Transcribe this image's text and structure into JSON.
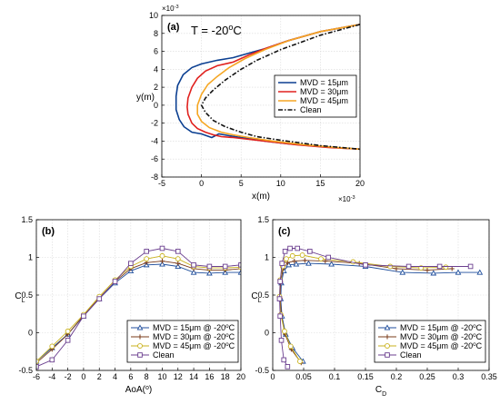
{
  "chart_data": [
    {
      "panel": "(a)",
      "type": "line",
      "annotation": "T = -20",
      "annotation_unit": "C",
      "annotation_sup": "o",
      "xlabel": "x(m)",
      "ylabel": "y(m)",
      "x_exponent_label": "×10",
      "x_exponent": "-3",
      "y_exponent_label": "×10",
      "y_exponent": "-3",
      "xlim": [
        -5,
        20
      ],
      "ylim": [
        -8,
        10
      ],
      "xticks": [
        "-5",
        "0",
        "5",
        "10",
        "15",
        "20"
      ],
      "yticks": [
        "-8",
        "-6",
        "-4",
        "-2",
        "0",
        "2",
        "4",
        "6",
        "8",
        "10"
      ],
      "grid": true,
      "legend_position": "right",
      "legend": [
        "MVD = 15μm",
        "MVD = 30μm",
        "MVD = 45μm",
        "Clean"
      ],
      "series": [
        {
          "name": "MVD = 15μm",
          "color": "#0b3f91",
          "x": [
            20,
            15,
            11,
            8,
            6,
            4,
            2,
            0,
            -1.2,
            -2.3,
            -3.0,
            -3.2,
            -3.2,
            -2.8,
            -2.2,
            -1.2,
            0,
            1.3,
            2.2,
            3.5,
            5,
            8,
            11,
            15,
            20
          ],
          "y": [
            9.0,
            8.2,
            7.2,
            6.3,
            5.8,
            5.3,
            5.0,
            4.6,
            4.2,
            3.4,
            2.2,
            1.0,
            -0.5,
            -1.6,
            -2.4,
            -3.0,
            -3.2,
            -3.6,
            -3.2,
            -3.4,
            -3.6,
            -4.0,
            -4.3,
            -4.6,
            -4.9
          ]
        },
        {
          "name": "MVD = 30μm",
          "color": "#e0211e",
          "x": [
            20,
            15,
            11,
            8,
            6,
            4,
            2,
            0.5,
            -0.5,
            -1.2,
            -1.7,
            -1.8,
            -1.7,
            -1.2,
            -0.5,
            0.5,
            1.5,
            2.5,
            4,
            6,
            9,
            12,
            16,
            20
          ],
          "y": [
            9.0,
            8.2,
            7.2,
            6.3,
            5.6,
            4.8,
            4.4,
            3.8,
            3.0,
            2.0,
            0.8,
            -0.2,
            -1.0,
            -2.0,
            -2.6,
            -3.0,
            -3.3,
            -3.5,
            -3.6,
            -3.8,
            -4.1,
            -4.4,
            -4.7,
            -4.9
          ]
        },
        {
          "name": "MVD = 45μm",
          "color": "#f5a623",
          "x": [
            20,
            15,
            11,
            8,
            5.5,
            3.5,
            2,
            0.8,
            0,
            -0.5,
            -0.5,
            0,
            1,
            2.5,
            4,
            6,
            9,
            13,
            17,
            20
          ],
          "y": [
            9.0,
            8.2,
            7.2,
            6.2,
            5.2,
            4.2,
            3.2,
            2.3,
            1.2,
            0,
            -1.0,
            -1.8,
            -2.5,
            -3.0,
            -3.3,
            -3.6,
            -4.0,
            -4.4,
            -4.7,
            -4.9
          ]
        },
        {
          "name": "Clean",
          "color": "#111111",
          "dashed": true,
          "x": [
            20,
            15,
            10,
            7,
            5,
            3,
            1.5,
            0.5,
            0,
            0.5,
            1.5,
            3,
            5,
            7,
            10,
            15,
            20
          ],
          "y": [
            9.0,
            7.8,
            6.2,
            5.0,
            4.0,
            2.8,
            1.7,
            0.8,
            0,
            -0.8,
            -1.7,
            -2.4,
            -3.0,
            -3.5,
            -3.9,
            -4.5,
            -4.9
          ]
        }
      ]
    },
    {
      "panel": "(b)",
      "type": "line",
      "xlabel": "AoA(",
      "xlabel_sup": "o",
      "xlabel_end": ")",
      "ylabel": "C",
      "ylabel_sub": "L",
      "xlim": [
        -6,
        20
      ],
      "ylim": [
        -0.5,
        1.5
      ],
      "xticks": [
        "-6",
        "-4",
        "-2",
        "0",
        "2",
        "4",
        "6",
        "8",
        "10",
        "12",
        "14",
        "16",
        "18",
        "20"
      ],
      "yticks": [
        "-0.5",
        "0",
        "0.5",
        "1",
        "1.5"
      ],
      "grid": true,
      "legend_position": "bottom-right",
      "x": [
        -6,
        -4,
        -2,
        0,
        2,
        4,
        6,
        8,
        10,
        12,
        14,
        16,
        18,
        20
      ],
      "series": [
        {
          "name": "MVD = 15μm @ -20",
          "name_sup": "o",
          "name_end": "C",
          "color": "#1f4e9c",
          "marker": "triangle",
          "values": [
            -0.38,
            -0.2,
            -0.02,
            0.22,
            0.45,
            0.66,
            0.82,
            0.9,
            0.91,
            0.88,
            0.8,
            0.79,
            0.8,
            0.8
          ]
        },
        {
          "name": "MVD = 30μm @ -20",
          "name_sup": "o",
          "name_end": "C",
          "color": "#7a3b1a",
          "marker": "plus",
          "values": [
            -0.4,
            -0.22,
            -0.02,
            0.23,
            0.46,
            0.68,
            0.85,
            0.93,
            0.95,
            0.92,
            0.85,
            0.83,
            0.83,
            0.85
          ]
        },
        {
          "name": "MVD = 45μm @ -20",
          "name_sup": "o",
          "name_end": "C",
          "color": "#c9b21d",
          "marker": "circle",
          "values": [
            -0.38,
            -0.18,
            0.02,
            0.24,
            0.48,
            0.7,
            0.88,
            0.98,
            1.02,
            0.98,
            0.88,
            0.86,
            0.86,
            0.87
          ]
        },
        {
          "name": "Clean",
          "color": "#6b3f8f",
          "marker": "square",
          "values": [
            -0.45,
            -0.36,
            -0.1,
            0.22,
            0.45,
            0.68,
            0.92,
            1.08,
            1.12,
            1.08,
            0.9,
            0.88,
            0.88,
            0.9
          ]
        }
      ]
    },
    {
      "panel": "(c)",
      "type": "line",
      "xlabel": "C",
      "xlabel_sub": "D",
      "ylabel": "C",
      "ylabel_sub": "L",
      "xlim": [
        0,
        0.35
      ],
      "ylim": [
        -0.5,
        1.5
      ],
      "xticks": [
        "0",
        "0.05",
        "0.1",
        "0.15",
        "0.2",
        "0.25",
        "0.3",
        "0.35"
      ],
      "yticks": [
        "-0.5",
        "0",
        "0.5",
        "1",
        "1.5"
      ],
      "grid": true,
      "legend_position": "bottom-right",
      "series": [
        {
          "name": "MVD = 15μm @ -20",
          "name_sup": "o",
          "name_end": "C",
          "color": "#1f4e9c",
          "marker": "triangle",
          "x": [
            0.049,
            0.032,
            0.021,
            0.015,
            0.013,
            0.014,
            0.018,
            0.026,
            0.038,
            0.058,
            0.095,
            0.15,
            0.21,
            0.26,
            0.3,
            0.335
          ],
          "y": [
            -0.38,
            -0.2,
            -0.02,
            0.22,
            0.45,
            0.66,
            0.82,
            0.9,
            0.91,
            0.92,
            0.91,
            0.88,
            0.8,
            0.79,
            0.8,
            0.8
          ]
        },
        {
          "name": "MVD = 30μm @ -20",
          "name_sup": "o",
          "name_end": "C",
          "color": "#7a3b1a",
          "marker": "plus",
          "x": [
            0.046,
            0.03,
            0.02,
            0.014,
            0.012,
            0.013,
            0.017,
            0.024,
            0.035,
            0.052,
            0.085,
            0.14,
            0.2,
            0.25,
            0.29
          ],
          "y": [
            -0.4,
            -0.22,
            -0.02,
            0.23,
            0.46,
            0.68,
            0.85,
            0.93,
            0.95,
            0.96,
            0.95,
            0.92,
            0.85,
            0.83,
            0.85
          ]
        },
        {
          "name": "MVD = 45μm @ -20",
          "name_sup": "o",
          "name_end": "C",
          "color": "#c9b21d",
          "marker": "circle",
          "x": [
            0.044,
            0.029,
            0.019,
            0.013,
            0.011,
            0.012,
            0.016,
            0.022,
            0.032,
            0.048,
            0.078,
            0.13,
            0.19,
            0.24,
            0.28
          ],
          "y": [
            -0.38,
            -0.18,
            0.02,
            0.24,
            0.48,
            0.7,
            0.88,
            0.98,
            1.02,
            1.03,
            0.98,
            0.94,
            0.88,
            0.86,
            0.87
          ]
        },
        {
          "name": "Clean",
          "color": "#6b3f8f",
          "marker": "square",
          "x": [
            0.024,
            0.018,
            0.014,
            0.012,
            0.011,
            0.012,
            0.015,
            0.02,
            0.028,
            0.04,
            0.06,
            0.09,
            0.15,
            0.22,
            0.27,
            0.32
          ],
          "y": [
            -0.45,
            -0.36,
            -0.1,
            0.22,
            0.45,
            0.68,
            0.92,
            1.08,
            1.12,
            1.12,
            1.08,
            1.0,
            0.9,
            0.88,
            0.88,
            0.88
          ]
        }
      ]
    }
  ]
}
